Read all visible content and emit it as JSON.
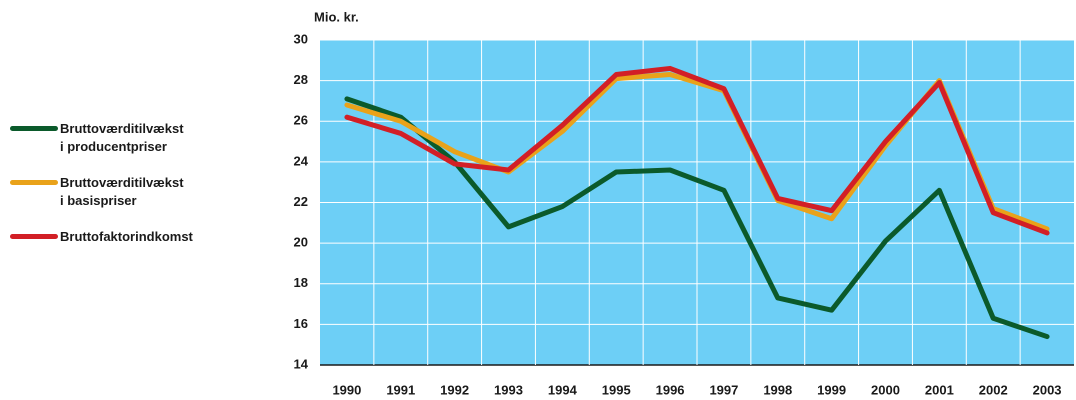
{
  "chart_data": {
    "type": "line",
    "y_label": "Mio. kr.",
    "categories": [
      "1990",
      "1991",
      "1992",
      "1993",
      "1994",
      "1995",
      "1996",
      "1997",
      "1998",
      "1999",
      "2000",
      "2001",
      "2002",
      "2003"
    ],
    "series": [
      {
        "name": "Bruttoværditilvækst\ni producentpriser",
        "color": "#0b5a2b",
        "values": [
          27.1,
          26.2,
          24.0,
          20.8,
          21.8,
          23.5,
          23.6,
          22.6,
          17.3,
          16.7,
          20.1,
          22.6,
          16.3,
          15.4
        ]
      },
      {
        "name": "Bruttoværditilvækst\ni basispriser",
        "color": "#e9a21a",
        "values": [
          26.8,
          26.0,
          24.5,
          23.5,
          25.5,
          28.1,
          28.3,
          27.5,
          22.1,
          21.2,
          24.8,
          28.0,
          21.7,
          20.7
        ]
      },
      {
        "name": "Bruttofaktorindkomst",
        "color": "#d21f26",
        "values": [
          26.2,
          25.4,
          23.9,
          23.6,
          25.8,
          28.3,
          28.6,
          27.6,
          22.2,
          21.6,
          25.0,
          27.9,
          21.5,
          20.5
        ]
      }
    ],
    "ylim": [
      14,
      30
    ],
    "yticks": [
      14,
      16,
      18,
      20,
      22,
      24,
      26,
      28,
      30
    ],
    "grid": true,
    "legend": "left",
    "background": "#6dcff6"
  }
}
